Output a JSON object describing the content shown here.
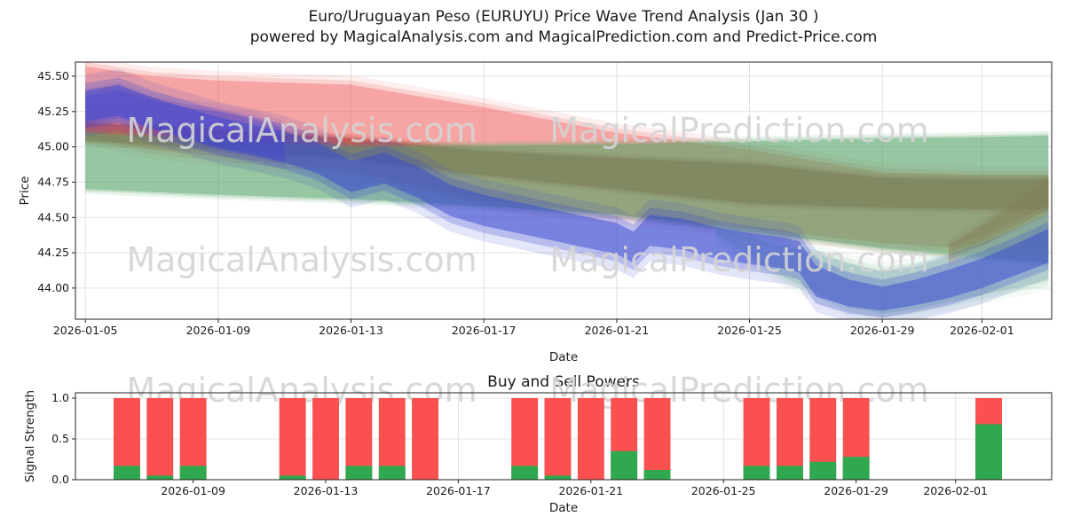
{
  "watermarks": {
    "left_text": "MagicalAnalysis.com",
    "right_text": "MagicalPrediction.com"
  },
  "colors": {
    "grid": "#e0e0e0",
    "axis": "#222222",
    "text": "#1a1a1a",
    "watermark": "#d4d4d4",
    "bar_sell": "#fa5050",
    "bar_buy": "#2fa84f"
  },
  "chart_data": [
    {
      "type": "area",
      "title": "Euro/Uruguayan Peso (EURUYU) Price Wave Trend Analysis (Jan 30 )",
      "subtitle": "powered by MagicalAnalysis.com and MagicalPrediction.com and Predict-Price.com",
      "xlabel": "Date",
      "ylabel": "Price",
      "x_unit": "days_since_2026-01-05",
      "xlim": [
        -0.3,
        29.1
      ],
      "ylim": [
        43.78,
        45.6
      ],
      "grid": true,
      "legend": "none",
      "xticks": [
        {
          "day": 0,
          "label": "2026-01-05"
        },
        {
          "day": 4,
          "label": "2026-01-09"
        },
        {
          "day": 8,
          "label": "2026-01-13"
        },
        {
          "day": 12,
          "label": "2026-01-17"
        },
        {
          "day": 16,
          "label": "2026-01-21"
        },
        {
          "day": 20,
          "label": "2026-01-25"
        },
        {
          "day": 24,
          "label": "2026-01-29"
        },
        {
          "day": 27,
          "label": "2026-02-01"
        }
      ],
      "yticks": [
        {
          "value": 44.0,
          "label": "44.00"
        },
        {
          "value": 44.25,
          "label": "44.25"
        },
        {
          "value": 44.5,
          "label": "44.50"
        },
        {
          "value": 44.75,
          "label": "44.75"
        },
        {
          "value": 45.0,
          "label": "45.00"
        },
        {
          "value": 45.25,
          "label": "45.25"
        },
        {
          "value": 45.5,
          "label": "45.50"
        }
      ],
      "bands": [
        {
          "name": "sell-zone-wide",
          "color": "#f0524f",
          "opacity": 0.35,
          "soft": 0.6,
          "x": [
            0,
            2,
            4,
            8,
            12,
            16,
            20,
            24,
            27,
            29
          ],
          "upper": [
            45.57,
            45.5,
            45.47,
            45.44,
            45.28,
            45.1,
            44.98,
            44.82,
            44.8,
            44.8
          ],
          "lower": [
            45.08,
            44.98,
            44.93,
            44.83,
            44.62,
            44.52,
            44.42,
            44.32,
            44.27,
            44.25
          ]
        },
        {
          "name": "sell-zone-core",
          "color": "#b03a34",
          "opacity": 0.5,
          "soft": 0.3,
          "x": [
            0,
            4,
            8,
            12,
            16,
            20,
            24,
            27,
            29
          ],
          "upper": [
            45.17,
            45.12,
            45.06,
            44.97,
            44.92,
            44.88,
            44.78,
            44.77,
            44.77
          ],
          "lower": [
            45.04,
            44.99,
            44.92,
            44.8,
            44.7,
            44.6,
            44.57,
            44.56,
            44.56
          ]
        },
        {
          "name": "sell-tail",
          "color": "#c9423c",
          "opacity": 0.45,
          "soft": 0.5,
          "x": [
            26,
            27,
            28,
            29
          ],
          "upper": [
            44.3,
            44.44,
            44.6,
            44.76
          ],
          "lower": [
            44.2,
            44.3,
            44.42,
            44.56
          ]
        },
        {
          "name": "buy-zone",
          "color": "#58a56b",
          "opacity": 0.45,
          "soft": 0.3,
          "x": [
            0,
            4,
            8,
            12,
            16,
            20,
            24,
            27,
            29
          ],
          "upper": [
            45.1,
            45.04,
            45.0,
            45.01,
            45.02,
            45.04,
            45.06,
            45.07,
            45.08
          ],
          "lower": [
            44.7,
            44.66,
            44.63,
            44.58,
            44.52,
            44.4,
            44.28,
            44.22,
            44.18
          ]
        },
        {
          "name": "buy-zone-low",
          "color": "#9ccfa8",
          "opacity": 0.4,
          "soft": 0.6,
          "x": [
            19,
            21,
            23,
            24,
            25,
            27,
            29
          ],
          "upper": [
            44.42,
            44.3,
            44.18,
            44.12,
            44.15,
            44.3,
            44.52
          ],
          "lower": [
            44.38,
            44.08,
            43.86,
            43.82,
            43.85,
            43.95,
            44.05
          ]
        },
        {
          "name": "momentum-early",
          "color": "#6a46c8",
          "opacity": 0.35,
          "soft": 0.5,
          "x": [
            0,
            1,
            2,
            3,
            4,
            5,
            6
          ],
          "upper": [
            45.36,
            45.4,
            45.33,
            45.28,
            45.25,
            45.2,
            45.13
          ],
          "lower": [
            45.16,
            45.2,
            45.13,
            45.06,
            45.0,
            44.96,
            44.9
          ]
        },
        {
          "name": "price-wave",
          "color": "#3848d0",
          "opacity": 0.5,
          "soft": 1.0,
          "x": [
            0,
            1,
            2,
            4,
            6,
            7,
            8,
            9,
            10,
            11,
            12,
            13,
            14,
            15,
            16,
            16.5,
            17,
            18,
            19,
            20,
            21,
            21.5,
            22,
            23,
            24,
            25,
            26,
            27,
            28,
            29
          ],
          "upper": [
            45.4,
            45.44,
            45.35,
            45.21,
            45.11,
            45.03,
            44.9,
            44.96,
            44.86,
            44.73,
            44.66,
            44.61,
            44.56,
            44.51,
            44.46,
            44.4,
            44.52,
            44.49,
            44.43,
            44.39,
            44.36,
            44.33,
            44.16,
            44.06,
            44.01,
            44.06,
            44.13,
            44.21,
            44.31,
            44.42
          ],
          "lower": [
            45.18,
            45.22,
            45.13,
            44.99,
            44.89,
            44.81,
            44.68,
            44.74,
            44.64,
            44.51,
            44.44,
            44.39,
            44.34,
            44.29,
            44.24,
            44.18,
            44.3,
            44.27,
            44.21,
            44.17,
            44.14,
            44.11,
            43.94,
            43.87,
            43.84,
            43.88,
            43.93,
            44.0,
            44.09,
            44.18
          ]
        }
      ]
    },
    {
      "type": "bar",
      "title": "Buy and Sell Powers",
      "xlabel": "Date",
      "ylabel": "Signal Strength",
      "xlim": [
        0.45,
        29.9
      ],
      "ylim": [
        0,
        1.065
      ],
      "grid": true,
      "bar_width_days": 0.8,
      "xticks": [
        {
          "day": 4,
          "label": "2026-01-09"
        },
        {
          "day": 8,
          "label": "2026-01-13"
        },
        {
          "day": 12,
          "label": "2026-01-17"
        },
        {
          "day": 16,
          "label": "2026-01-21"
        },
        {
          "day": 20,
          "label": "2026-01-25"
        },
        {
          "day": 24,
          "label": "2026-01-29"
        },
        {
          "day": 27,
          "label": "2026-02-01"
        }
      ],
      "yticks": [
        {
          "value": 0,
          "label": "0.0"
        },
        {
          "value": 0.5,
          "label": "0.5"
        },
        {
          "value": 1,
          "label": "1.0"
        }
      ],
      "bars": [
        {
          "date": "2026-01-07",
          "day": 2,
          "sell": 1.0,
          "buy": 0.17
        },
        {
          "date": "2026-01-08",
          "day": 3,
          "sell": 1.0,
          "buy": 0.05
        },
        {
          "date": "2026-01-09",
          "day": 4,
          "sell": 1.0,
          "buy": 0.17
        },
        {
          "date": "2026-01-12",
          "day": 7,
          "sell": 1.0,
          "buy": 0.05
        },
        {
          "date": "2026-01-13",
          "day": 8,
          "sell": 1.0,
          "buy": 0.0
        },
        {
          "date": "2026-01-14",
          "day": 9,
          "sell": 1.0,
          "buy": 0.17
        },
        {
          "date": "2026-01-15",
          "day": 10,
          "sell": 1.0,
          "buy": 0.17
        },
        {
          "date": "2026-01-16",
          "day": 11,
          "sell": 1.0,
          "buy": 0.0
        },
        {
          "date": "2026-01-19",
          "day": 14,
          "sell": 1.0,
          "buy": 0.17
        },
        {
          "date": "2026-01-20",
          "day": 15,
          "sell": 1.0,
          "buy": 0.05
        },
        {
          "date": "2026-01-21",
          "day": 16,
          "sell": 1.0,
          "buy": 0.0
        },
        {
          "date": "2026-01-22",
          "day": 17,
          "sell": 1.0,
          "buy": 0.35
        },
        {
          "date": "2026-01-23",
          "day": 18,
          "sell": 1.0,
          "buy": 0.12
        },
        {
          "date": "2026-01-26",
          "day": 21,
          "sell": 1.0,
          "buy": 0.17
        },
        {
          "date": "2026-01-27",
          "day": 22,
          "sell": 1.0,
          "buy": 0.17
        },
        {
          "date": "2026-01-28",
          "day": 23,
          "sell": 1.0,
          "buy": 0.22
        },
        {
          "date": "2026-01-29",
          "day": 24,
          "sell": 1.0,
          "buy": 0.28
        },
        {
          "date": "2026-02-02",
          "day": 28,
          "sell": 1.0,
          "buy": 0.68
        }
      ]
    }
  ]
}
